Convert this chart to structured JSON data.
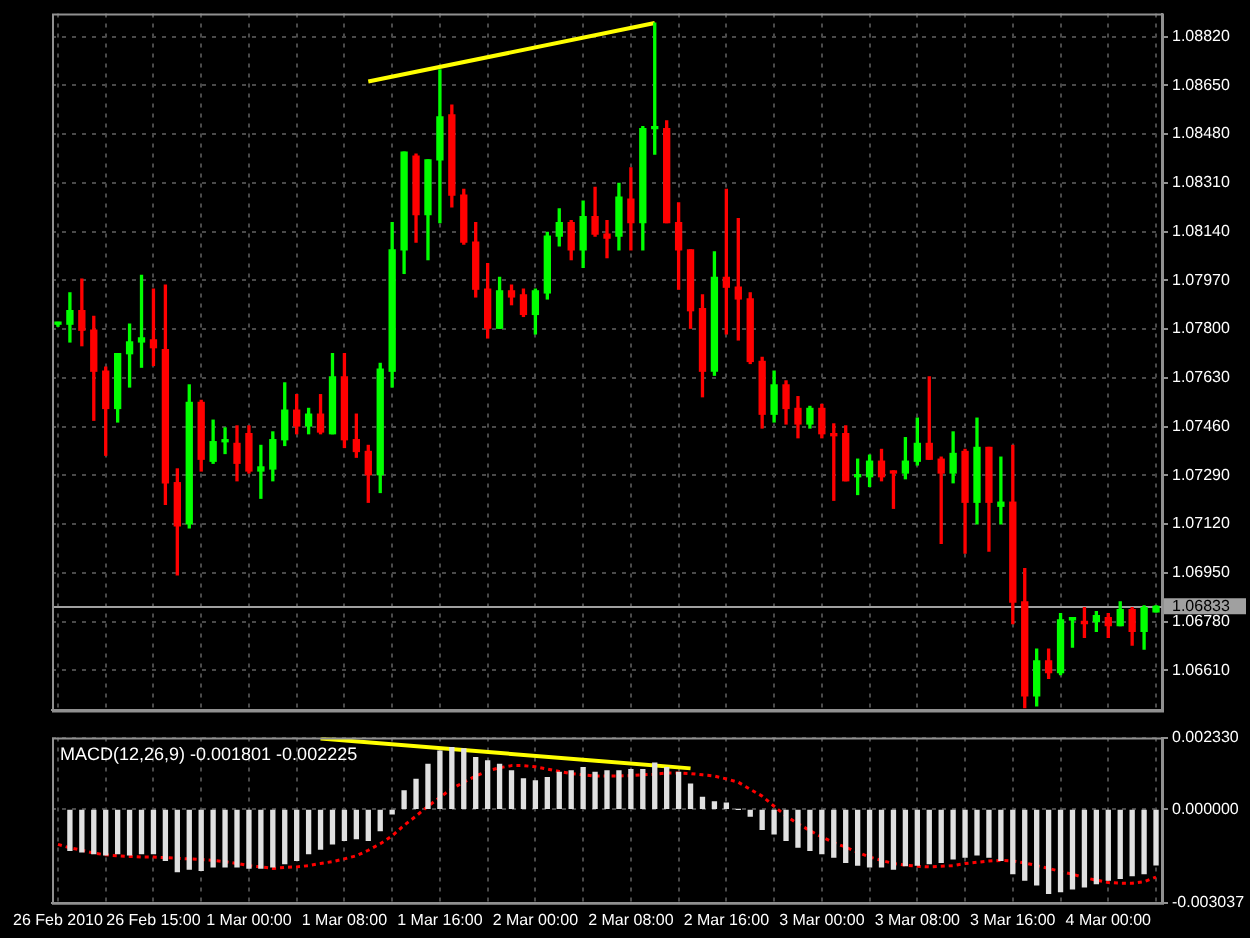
{
  "chart_data": [
    {
      "type": "candlestick",
      "tick_labels": "y",
      "grid": true,
      "legend": false,
      "categories": [
        null,
        null,
        null,
        null,
        null,
        null,
        null,
        null,
        null,
        null,
        null,
        null,
        null,
        null,
        null,
        null,
        null,
        null,
        null,
        null,
        null,
        null,
        null,
        null,
        null,
        null,
        null,
        null,
        null,
        null,
        null,
        null,
        null,
        null,
        null,
        null,
        null,
        null,
        null,
        null,
        null,
        null,
        null,
        null,
        null,
        null,
        null,
        null,
        null,
        null,
        null,
        null,
        null,
        null,
        null,
        null,
        null,
        null,
        null,
        null,
        null,
        null,
        null,
        null,
        null,
        null,
        null,
        null,
        null,
        null,
        null,
        null,
        null,
        null,
        null,
        null,
        null,
        null,
        null,
        null,
        null,
        null,
        null,
        null,
        null,
        null,
        null,
        null,
        null,
        null,
        null,
        null,
        null
      ],
      "ylim": [
        1.0647,
        1.089
      ],
      "yticks": [
        {
          "value": 1.0882,
          "label": "1.08820"
        },
        {
          "value": 1.0865,
          "label": "1.08650"
        },
        {
          "value": 1.0848,
          "label": "1.08480"
        },
        {
          "value": 1.0831,
          "label": "1.08310"
        },
        {
          "value": 1.0814,
          "label": "1.08140"
        },
        {
          "value": 1.0797,
          "label": "1.07970"
        },
        {
          "value": 1.078,
          "label": "1.07800"
        },
        {
          "value": 1.0763,
          "label": "1.07630"
        },
        {
          "value": 1.0746,
          "label": "1.07460"
        },
        {
          "value": 1.0729,
          "label": "1.07290"
        },
        {
          "value": 1.0712,
          "label": "1.07120"
        },
        {
          "value": 1.0695,
          "label": "1.06950"
        },
        {
          "value": 1.0678,
          "label": "1.06780"
        },
        {
          "value": 1.0661,
          "label": "1.06610"
        }
      ],
      "ref_lines": [
        {
          "axis": "y",
          "value": 1.06833,
          "label": "1.06833",
          "color": "#a0a0a0"
        }
      ],
      "ohlc": [
        [
          1.07817,
          1.07823,
          1.0781,
          1.07817
        ],
        [
          1.07817,
          1.07926,
          1.07755,
          1.07864
        ],
        [
          1.07864,
          1.07974,
          1.07742,
          1.07796
        ],
        [
          1.07796,
          1.07844,
          1.07482,
          1.07653
        ],
        [
          1.07653,
          1.07667,
          1.0736,
          1.07523
        ],
        [
          1.07523,
          1.07714,
          1.07476,
          1.07714
        ],
        [
          1.07714,
          1.07817,
          1.07598,
          1.07755
        ],
        [
          1.07755,
          1.07987,
          1.07667,
          1.07769
        ],
        [
          1.07762,
          1.07939,
          1.07673,
          1.07735
        ],
        [
          1.07728,
          1.07953,
          1.07189,
          1.07264
        ],
        [
          1.07264,
          1.07312,
          1.06943,
          1.07114
        ],
        [
          1.07121,
          1.07605,
          1.07107,
          1.07544
        ],
        [
          1.07544,
          1.07551,
          1.07305,
          1.07346
        ],
        [
          1.07339,
          1.07482,
          1.07332,
          1.07407
        ],
        [
          1.07407,
          1.07455,
          1.07366,
          1.07414
        ],
        [
          1.07401,
          1.07462,
          1.07271,
          1.07332
        ],
        [
          1.07435,
          1.07462,
          1.07298,
          1.07305
        ],
        [
          1.07305,
          1.07394,
          1.0721,
          1.07319
        ],
        [
          1.07312,
          1.07441,
          1.07271,
          1.07414
        ],
        [
          1.07414,
          1.07612,
          1.07394,
          1.07517
        ],
        [
          1.07517,
          1.07571,
          1.07435,
          1.07462
        ],
        [
          1.07462,
          1.07523,
          1.07435,
          1.07503
        ],
        [
          1.07503,
          1.07571,
          1.07435,
          1.07441
        ],
        [
          1.07435,
          1.07714,
          1.07435,
          1.07633
        ],
        [
          1.07633,
          1.07714,
          1.07387,
          1.07414
        ],
        [
          1.07414,
          1.07503,
          1.07353,
          1.07373
        ],
        [
          1.07373,
          1.07394,
          1.07196,
          1.07292
        ],
        [
          1.07292,
          1.0768,
          1.0723,
          1.0766
        ],
        [
          1.07653,
          1.08171,
          1.07598,
          1.08076
        ],
        [
          1.08076,
          1.08417,
          1.07994,
          1.08417
        ],
        [
          1.08403,
          1.0841,
          1.08103,
          1.08199
        ],
        [
          1.08199,
          1.0839,
          1.08042,
          1.0839
        ],
        [
          1.0839,
          1.08704,
          1.08171,
          1.0854
        ],
        [
          1.08547,
          1.08581,
          1.08226,
          1.08267
        ],
        [
          1.08267,
          1.08287,
          1.08096,
          1.08103
        ],
        [
          1.08103,
          1.08171,
          1.07912,
          1.07939
        ],
        [
          1.07939,
          1.08028,
          1.07769,
          1.07803
        ],
        [
          1.07803,
          1.0798,
          1.07803,
          1.07933
        ],
        [
          1.07933,
          1.07953,
          1.07885,
          1.07912
        ],
        [
          1.07919,
          1.07939,
          1.07844,
          1.07851
        ],
        [
          1.07851,
          1.07939,
          1.07783,
          1.07933
        ],
        [
          1.07926,
          1.08137,
          1.07905,
          1.08124
        ],
        [
          1.08124,
          1.08219,
          1.0809,
          1.08171
        ],
        [
          1.08171,
          1.08178,
          1.08042,
          1.08076
        ],
        [
          1.08076,
          1.08246,
          1.08015,
          1.08192
        ],
        [
          1.08192,
          1.08294,
          1.08124,
          1.08131
        ],
        [
          1.08131,
          1.08178,
          1.08049,
          1.08117
        ],
        [
          1.08124,
          1.08308,
          1.08076,
          1.0826
        ],
        [
          1.08253,
          1.08362,
          1.08076,
          1.08171
        ],
        [
          1.08171,
          1.08506,
          1.08076,
          1.08499
        ],
        [
          1.08499,
          1.08867,
          1.0841,
          1.08506
        ],
        [
          1.08499,
          1.08526,
          1.08171,
          1.08171
        ],
        [
          1.08171,
          1.0824,
          1.07939,
          1.08076
        ],
        [
          1.08076,
          1.08076,
          1.07803,
          1.07864
        ],
        [
          1.07871,
          1.07919,
          1.07564,
          1.07653
        ],
        [
          1.07653,
          1.08069,
          1.07639,
          1.0798
        ],
        [
          1.0798,
          1.08287,
          1.07783,
          1.07946
        ],
        [
          1.07946,
          1.08185,
          1.07762,
          1.07905
        ],
        [
          1.07905,
          1.07926,
          1.0768,
          1.07687
        ],
        [
          1.07687,
          1.07701,
          1.07455,
          1.07503
        ],
        [
          1.07503,
          1.07653,
          1.07476,
          1.07605
        ],
        [
          1.07605,
          1.07619,
          1.07469,
          1.07523
        ],
        [
          1.07523,
          1.07564,
          1.07421,
          1.07469
        ],
        [
          1.07469,
          1.0753,
          1.07455,
          1.07523
        ],
        [
          1.07523,
          1.07537,
          1.07421,
          1.07435
        ],
        [
          1.07435,
          1.07469,
          1.07203,
          1.07428
        ],
        [
          1.07435,
          1.07462,
          1.07271,
          1.07271
        ],
        [
          1.07285,
          1.07346,
          1.07223,
          1.07292
        ],
        [
          1.07285,
          1.0736,
          1.07251,
          1.07339
        ],
        [
          1.07339,
          1.0738,
          1.07271,
          1.07285
        ],
        [
          1.07305,
          1.07305,
          1.07175,
          1.07298
        ],
        [
          1.07298,
          1.07421,
          1.07278,
          1.07339
        ],
        [
          1.07339,
          1.07489,
          1.07326,
          1.07401
        ],
        [
          1.07401,
          1.07633,
          1.07346,
          1.07346
        ],
        [
          1.07346,
          1.07353,
          1.07053,
          1.07298
        ],
        [
          1.07298,
          1.07441,
          1.07264,
          1.07366
        ],
        [
          1.07373,
          1.0738,
          1.07019,
          1.07196
        ],
        [
          1.07196,
          1.07489,
          1.07121,
          1.07387
        ],
        [
          1.07387,
          1.07387,
          1.07026,
          1.07196
        ],
        [
          1.07182,
          1.07353,
          1.07121,
          1.07196
        ],
        [
          1.07196,
          1.07394,
          1.06773,
          1.06848
        ],
        [
          1.06848,
          1.06964,
          1.0648,
          1.06521
        ],
        [
          1.06521,
          1.06684,
          1.06486,
          1.06643
        ],
        [
          1.06643,
          1.06684,
          1.06582,
          1.06602
        ],
        [
          1.06602,
          1.06807,
          1.06595,
          1.06786
        ],
        [
          1.06786,
          1.06793,
          1.06691,
          1.06793
        ],
        [
          1.0678,
          1.06828,
          1.06725,
          1.06773
        ],
        [
          1.0678,
          1.06814,
          1.06746,
          1.068
        ],
        [
          1.06793,
          1.06807,
          1.06725,
          1.06766
        ],
        [
          1.06766,
          1.06848,
          1.06766,
          1.06821
        ],
        [
          1.06821,
          1.06828,
          1.06698,
          1.06746
        ],
        [
          1.06746,
          1.06834,
          1.06684,
          1.06828
        ],
        [
          1.06814,
          1.06834,
          1.06814,
          1.06833
        ]
      ],
      "colors": [
        "#00ff00",
        "#00ff00",
        "#ff0000",
        "#ff0000",
        "#ff0000",
        "#00ff00",
        "#00ff00",
        "#00ff00",
        "#ff0000",
        "#ff0000",
        "#ff0000",
        "#00ff00",
        "#ff0000",
        "#00ff00",
        "#00ff00",
        "#ff0000",
        "#ff0000",
        "#00ff00",
        "#00ff00",
        "#00ff00",
        "#ff0000",
        "#00ff00",
        "#ff0000",
        "#00ff00",
        "#ff0000",
        "#ff0000",
        "#ff0000",
        "#00ff00",
        "#00ff00",
        "#00ff00",
        "#ff0000",
        "#00ff00",
        "#00ff00",
        "#ff0000",
        "#ff0000",
        "#ff0000",
        "#ff0000",
        "#00ff00",
        "#ff0000",
        "#ff0000",
        "#00ff00",
        "#00ff00",
        "#00ff00",
        "#ff0000",
        "#00ff00",
        "#ff0000",
        "#ff0000",
        "#00ff00",
        "#ff0000",
        "#00ff00",
        "#00ff00",
        "#ff0000",
        "#ff0000",
        "#ff0000",
        "#ff0000",
        "#00ff00",
        "#ff0000",
        "#ff0000",
        "#ff0000",
        "#ff0000",
        "#00ff00",
        "#ff0000",
        "#ff0000",
        "#00ff00",
        "#ff0000",
        "#ff0000",
        "#ff0000",
        "#00ff00",
        "#00ff00",
        "#ff0000",
        "#ff0000",
        "#00ff00",
        "#00ff00",
        "#ff0000",
        "#ff0000",
        "#00ff00",
        "#ff0000",
        "#00ff00",
        "#ff0000",
        "#00ff00",
        "#ff0000",
        "#ff0000",
        "#00ff00",
        "#ff0000",
        "#00ff00",
        "#00ff00",
        "#ff0000",
        "#00ff00",
        "#ff0000",
        "#00ff00",
        "#ff0000",
        "#00ff00",
        "#00ff00"
      ],
      "series": [
        {
          "type": "line",
          "color": "#ffff00",
          "values": [
            null,
            null,
            null,
            null,
            null,
            null,
            null,
            null,
            null,
            null,
            null,
            null,
            null,
            null,
            null,
            null,
            null,
            null,
            null,
            null,
            null,
            null,
            null,
            null,
            null,
            null,
            1.08663,
            null,
            null,
            null,
            null,
            null,
            null,
            null,
            null,
            null,
            null,
            null,
            null,
            null,
            null,
            null,
            null,
            null,
            null,
            null,
            null,
            null,
            null,
            null,
            1.08867,
            null,
            null,
            null,
            null,
            null,
            null,
            null,
            null,
            null,
            null,
            null,
            null,
            null,
            null,
            null,
            null,
            null,
            null,
            null,
            null,
            null,
            null,
            null,
            null,
            null,
            null,
            null,
            null,
            null,
            null,
            null,
            null,
            null,
            null,
            null,
            null,
            null,
            null,
            null,
            null,
            null,
            null
          ]
        }
      ]
    },
    {
      "type": "bar",
      "title": "MACD(12,26,9) -0.001801 -0.002225",
      "grid": true,
      "legend": false,
      "categories": [
        "26 Feb 2010",
        null,
        null,
        null,
        null,
        null,
        null,
        null,
        "26 Feb 15:00",
        null,
        null,
        null,
        null,
        null,
        null,
        null,
        "1 Mar 00:00",
        null,
        null,
        null,
        null,
        null,
        null,
        null,
        "1 Mar 08:00",
        null,
        null,
        null,
        null,
        null,
        null,
        null,
        "1 Mar 16:00",
        null,
        null,
        null,
        null,
        null,
        null,
        null,
        "2 Mar 00:00",
        null,
        null,
        null,
        null,
        null,
        null,
        null,
        "2 Mar 08:00",
        null,
        null,
        null,
        null,
        null,
        null,
        null,
        "2 Mar 16:00",
        null,
        null,
        null,
        null,
        null,
        null,
        null,
        "3 Mar 00:00",
        null,
        null,
        null,
        null,
        null,
        null,
        null,
        "3 Mar 08:00",
        null,
        null,
        null,
        null,
        null,
        null,
        null,
        "3 Mar 16:00",
        null,
        null,
        null,
        null,
        null,
        null,
        null,
        "4 Mar 00:00",
        null,
        null,
        null,
        null
      ],
      "ylim": [
        -0.003037,
        0.00233
      ],
      "yticks": [
        {
          "value": 0.00233,
          "label": "0.002330"
        },
        {
          "value": 0,
          "label": "0.000000"
        },
        {
          "value": -0.003037,
          "label": "-0.003037"
        }
      ],
      "series": [
        {
          "type": "bar",
          "color": "#e0e0e0",
          "values": [
            null,
            -0.00133,
            -0.00138,
            -0.00144,
            -0.00148,
            -0.00144,
            -0.00148,
            -0.00144,
            -0.00144,
            -0.00166,
            -0.00202,
            -0.00194,
            -0.00198,
            -0.00187,
            -0.00187,
            -0.00187,
            -0.00191,
            -0.00191,
            -0.00187,
            -0.00176,
            -0.00166,
            -0.00144,
            -0.00129,
            -0.00112,
            -0.00101,
            -0.00095,
            -0.00101,
            -0.00069,
            -0.00015,
            0.0006,
            0.00097,
            0.00146,
            0.00189,
            0.002,
            0.00196,
            0.00168,
            0.00157,
            0.00146,
            0.00125,
            0.00099,
            0.00092,
            0.00103,
            0.0012,
            0.00125,
            0.00135,
            0.0012,
            0.00125,
            0.00125,
            0.00129,
            0.00129,
            0.0015,
            0.00135,
            0.0012,
            0.00082,
            0.00039,
            0.00024,
            0.0002,
            0,
            -0.00022,
            -0.00065,
            -0.0008,
            -0.00101,
            -0.00123,
            -0.00133,
            -0.00144,
            -0.00155,
            -0.00172,
            -0.00181,
            -0.00187,
            -0.00187,
            -0.00194,
            -0.00183,
            -0.00181,
            -0.00176,
            -0.00172,
            -0.00161,
            -0.00155,
            -0.00148,
            -0.00155,
            -0.00166,
            -0.00209,
            -0.0023,
            -0.00245,
            -0.00273,
            -0.00267,
            -0.00258,
            -0.00252,
            -0.00241,
            -0.0023,
            -0.00224,
            -0.00215,
            -0.00209,
            -0.0018
          ]
        },
        {
          "type": "line",
          "color": "#ff0000",
          "line_style": "dotted",
          "values": [
            -0.00114,
            -0.00125,
            -0.00133,
            -0.00142,
            -0.00148,
            -0.00151,
            -0.00153,
            -0.00155,
            -0.00155,
            -0.00157,
            -0.00159,
            -0.00161,
            -0.00163,
            -0.00166,
            -0.0017,
            -0.00176,
            -0.00183,
            -0.00187,
            -0.00192,
            -0.00189,
            -0.00187,
            -0.00183,
            -0.00176,
            -0.0017,
            -0.00161,
            -0.00151,
            -0.00133,
            -0.00112,
            -0.00086,
            -0.00052,
            -0.00022,
            0.0001,
            0.00039,
            0.00067,
            0.00088,
            0.00108,
            0.00125,
            0.00135,
            0.00142,
            0.00142,
            0.00138,
            0.00131,
            0.00123,
            0.00116,
            0.00112,
            0.00108,
            0.00108,
            0.00108,
            0.0011,
            0.00112,
            0.00114,
            0.00118,
            0.00118,
            0.00116,
            0.00112,
            0.00108,
            0.00099,
            0.00088,
            0.00065,
            0.00043,
            0.0001,
            -0.00022,
            -0.00047,
            -0.00069,
            -0.0009,
            -0.00108,
            -0.00123,
            -0.0014,
            -0.00155,
            -0.00166,
            -0.00176,
            -0.00181,
            -0.00185,
            -0.00187,
            -0.00185,
            -0.00183,
            -0.00176,
            -0.00172,
            -0.00168,
            -0.00166,
            -0.00168,
            -0.00174,
            -0.00183,
            -0.00192,
            -0.00202,
            -0.00211,
            -0.00222,
            -0.0023,
            -0.00238,
            -0.0024,
            -0.0024,
            -0.00235,
            -0.0022
          ]
        },
        {
          "type": "line",
          "color": "#ffff00",
          "values": [
            null,
            null,
            null,
            null,
            null,
            null,
            null,
            null,
            null,
            null,
            null,
            null,
            null,
            null,
            null,
            null,
            null,
            null,
            null,
            null,
            null,
            null,
            0.0023,
            null,
            null,
            null,
            null,
            null,
            null,
            null,
            null,
            null,
            null,
            null,
            null,
            null,
            null,
            null,
            null,
            null,
            null,
            null,
            null,
            null,
            null,
            null,
            null,
            null,
            null,
            null,
            null,
            null,
            null,
            0.00133,
            null,
            null,
            null,
            null,
            null,
            null,
            null,
            null,
            null,
            null,
            null,
            null,
            null,
            null,
            null,
            null,
            null,
            null,
            null,
            null,
            null,
            null,
            null,
            null,
            null,
            null,
            null,
            null,
            null,
            null,
            null,
            null,
            null,
            null,
            null,
            null,
            null,
            null,
            null
          ]
        }
      ]
    }
  ]
}
